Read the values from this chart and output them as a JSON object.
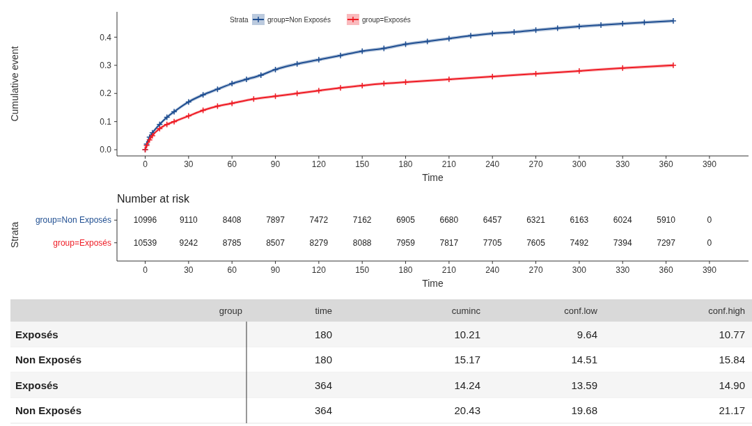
{
  "chart_data": [
    {
      "type": "line",
      "xlabel": "Time",
      "ylabel": "Cumulative event",
      "legend_title": "Strata",
      "legend": "top",
      "marker": "cross",
      "line_style": "solid",
      "grid": false,
      "xlim": [
        -19.5,
        417
      ],
      "xticks": [
        0,
        30,
        60,
        90,
        120,
        150,
        180,
        210,
        240,
        270,
        300,
        330,
        360,
        390
      ],
      "ylim": [
        -0.022,
        0.49
      ],
      "yticks": [
        {
          "value": 0,
          "label": "0.0"
        },
        0.1,
        0.2,
        0.3,
        0.4
      ],
      "series": [
        {
          "name": "group=Non Exposés",
          "color": "#1f4e91",
          "x": [
            0,
            1,
            3,
            5,
            10,
            15,
            20,
            30,
            40,
            50,
            60,
            70,
            80,
            90,
            105,
            120,
            135,
            150,
            165,
            180,
            195,
            210,
            225,
            240,
            255,
            270,
            285,
            300,
            315,
            330,
            345,
            365
          ],
          "values": [
            0.0,
            0.02,
            0.045,
            0.06,
            0.09,
            0.115,
            0.135,
            0.17,
            0.195,
            0.215,
            0.235,
            0.25,
            0.265,
            0.285,
            0.305,
            0.32,
            0.335,
            0.35,
            0.36,
            0.375,
            0.385,
            0.395,
            0.405,
            0.413,
            0.418,
            0.425,
            0.432,
            0.438,
            0.443,
            0.448,
            0.452,
            0.458
          ],
          "lower": [
            0.0,
            0.014,
            0.039,
            0.054,
            0.084,
            0.109,
            0.129,
            0.164,
            0.189,
            0.209,
            0.229,
            0.244,
            0.259,
            0.279,
            0.299,
            0.314,
            0.329,
            0.344,
            0.354,
            0.369,
            0.379,
            0.389,
            0.399,
            0.407,
            0.412,
            0.419,
            0.426,
            0.432,
            0.437,
            0.442,
            0.446,
            0.452
          ],
          "upper": [
            0.0,
            0.026,
            0.051,
            0.066,
            0.096,
            0.121,
            0.141,
            0.176,
            0.201,
            0.221,
            0.241,
            0.256,
            0.271,
            0.291,
            0.311,
            0.326,
            0.341,
            0.356,
            0.366,
            0.381,
            0.391,
            0.401,
            0.411,
            0.419,
            0.424,
            0.431,
            0.438,
            0.444,
            0.449,
            0.454,
            0.458,
            0.464
          ]
        },
        {
          "name": "group=Exposés",
          "color": "#ee1c25",
          "x": [
            0,
            1,
            3,
            5,
            10,
            15,
            20,
            30,
            40,
            50,
            60,
            75,
            90,
            105,
            120,
            135,
            150,
            165,
            180,
            210,
            240,
            270,
            300,
            330,
            365
          ],
          "values": [
            0.0,
            0.015,
            0.035,
            0.05,
            0.075,
            0.09,
            0.1,
            0.12,
            0.14,
            0.155,
            0.165,
            0.18,
            0.19,
            0.2,
            0.21,
            0.22,
            0.228,
            0.235,
            0.24,
            0.25,
            0.26,
            0.27,
            0.28,
            0.29,
            0.3
          ],
          "lower": [
            0.0,
            0.01,
            0.03,
            0.045,
            0.07,
            0.085,
            0.095,
            0.115,
            0.135,
            0.15,
            0.16,
            0.175,
            0.185,
            0.195,
            0.205,
            0.215,
            0.223,
            0.23,
            0.235,
            0.245,
            0.255,
            0.265,
            0.275,
            0.285,
            0.294
          ],
          "upper": [
            0.0,
            0.02,
            0.04,
            0.055,
            0.08,
            0.095,
            0.105,
            0.125,
            0.145,
            0.16,
            0.17,
            0.185,
            0.195,
            0.205,
            0.215,
            0.225,
            0.233,
            0.24,
            0.245,
            0.255,
            0.265,
            0.275,
            0.285,
            0.295,
            0.306
          ]
        }
      ]
    },
    {
      "type": "heatmap",
      "title": "Number at risk",
      "xlabel": "Time",
      "ylabel": "Strata",
      "x": [
        0,
        30,
        60,
        90,
        120,
        150,
        180,
        210,
        240,
        270,
        300,
        330,
        360,
        390
      ],
      "xlim": [
        -19.5,
        417
      ],
      "xticks": [
        0,
        30,
        60,
        90,
        120,
        150,
        180,
        210,
        240,
        270,
        300,
        330,
        360,
        390
      ],
      "y_categories": [
        "group=Non Exposés",
        "group=Exposés"
      ],
      "colors": [
        "#1f4e91",
        "#ee1c25"
      ],
      "cells": [
        [
          10996,
          9110,
          8408,
          7897,
          7472,
          7162,
          6905,
          6680,
          6457,
          6321,
          6163,
          6024,
          5910,
          0
        ],
        [
          10539,
          9242,
          8785,
          8507,
          8279,
          8088,
          7959,
          7817,
          7705,
          7605,
          7492,
          7394,
          7297,
          0
        ]
      ],
      "data_labels": true
    },
    {
      "type": "other",
      "categories": [
        "group",
        "time",
        "cuminc",
        "conf.low",
        "conf.high"
      ],
      "cell_labels": [
        [
          "Exposés",
          "180",
          "10.21",
          "9.64",
          "10.77"
        ],
        [
          "Non Exposés",
          "180",
          "15.17",
          "14.51",
          "15.84"
        ],
        [
          "Exposés",
          "364",
          "14.24",
          "13.59",
          "14.90"
        ],
        [
          "Non Exposés",
          "364",
          "20.43",
          "19.68",
          "21.17"
        ]
      ]
    }
  ]
}
